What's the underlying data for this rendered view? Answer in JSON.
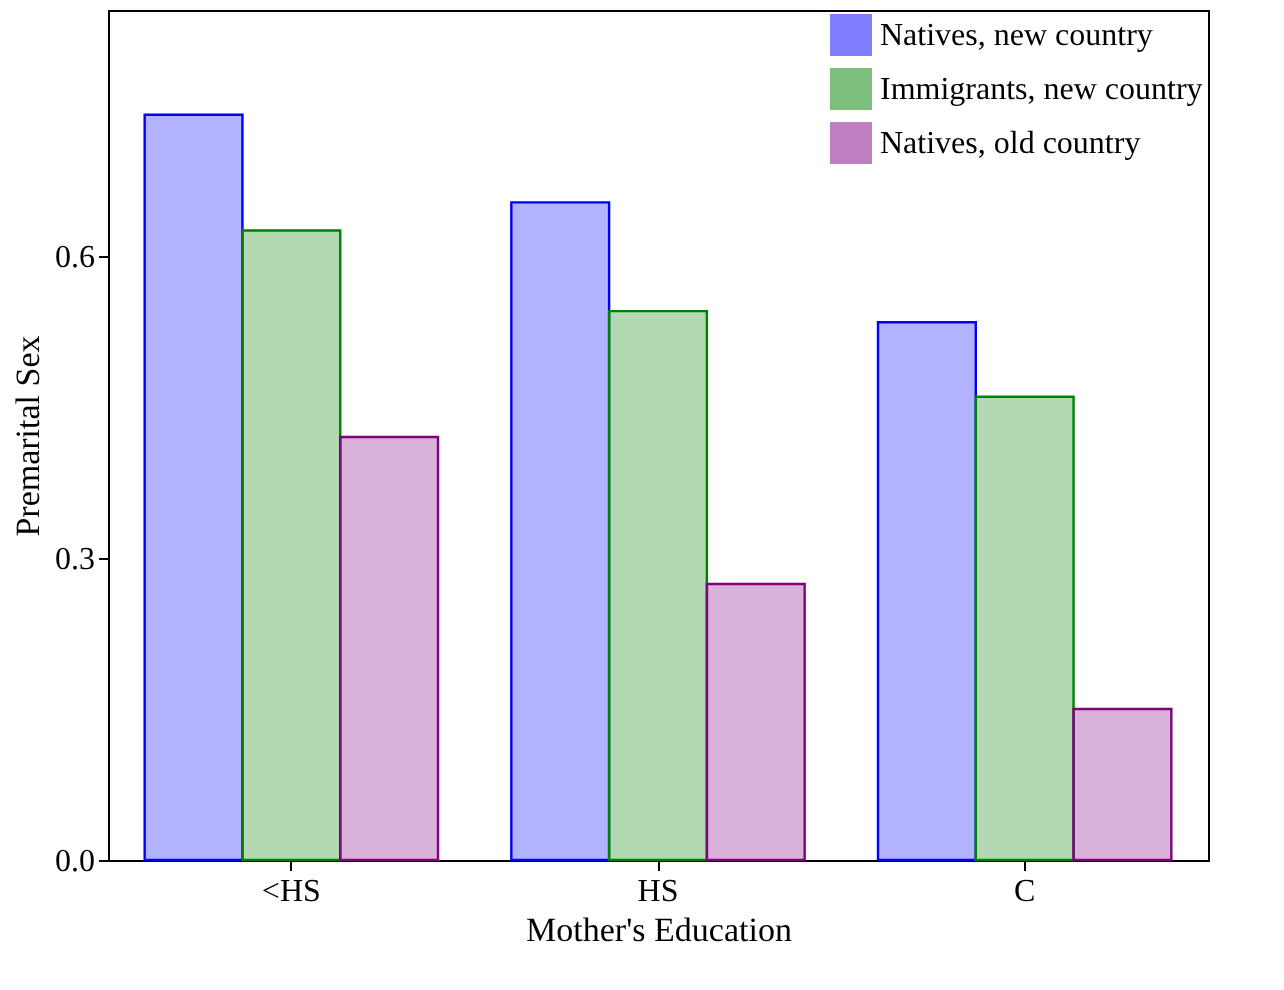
{
  "chart_data": {
    "type": "bar",
    "xlabel": "Mother's Education",
    "ylabel": "Premarital Sex",
    "categories": [
      "<HS",
      "HS",
      "C"
    ],
    "series": [
      {
        "name": "Natives, new country",
        "color": "#0000ff",
        "values": [
          0.74,
          0.653,
          0.534
        ]
      },
      {
        "name": "Immigrants, new country",
        "color": "#008000",
        "values": [
          0.625,
          0.545,
          0.46
        ]
      },
      {
        "name": "Natives, old country",
        "color": "#800080",
        "values": [
          0.42,
          0.274,
          0.15
        ]
      }
    ],
    "ylim": [
      0,
      0.844
    ],
    "yticks": [
      {
        "value": 0,
        "label": "0.0"
      },
      {
        "value": 0.3,
        "label": "0.3"
      },
      {
        "value": 0.6,
        "label": "0.6"
      }
    ],
    "grid": false,
    "legend": "top right"
  }
}
